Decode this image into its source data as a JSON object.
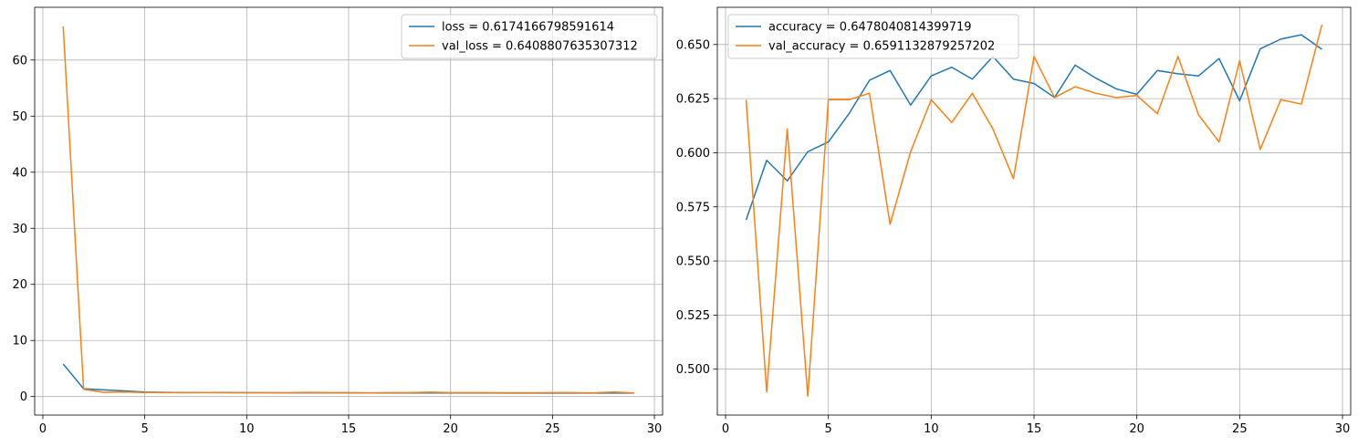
{
  "chart_data": [
    {
      "type": "line",
      "title": "",
      "xlabel": "",
      "ylabel": "",
      "xlim": [
        -0.4,
        30.4
      ],
      "ylim": [
        -3.3,
        69.4
      ],
      "xticks": [
        0,
        5,
        10,
        15,
        20,
        25,
        30
      ],
      "yticks": [
        0,
        10,
        20,
        30,
        40,
        50,
        60
      ],
      "grid": true,
      "legend_position": "top-right",
      "x": [
        1,
        2,
        3,
        4,
        5,
        6,
        7,
        8,
        9,
        10,
        11,
        12,
        13,
        14,
        15,
        16,
        17,
        18,
        19,
        20,
        21,
        22,
        23,
        24,
        25,
        26,
        27,
        28,
        29
      ],
      "series": [
        {
          "name": "loss = 0.6174166798591614",
          "color": "#1f77b4",
          "values": [
            5.8,
            1.4,
            1.2,
            1.0,
            0.8,
            0.75,
            0.7,
            0.7,
            0.7,
            0.68,
            0.68,
            0.67,
            0.66,
            0.66,
            0.66,
            0.65,
            0.65,
            0.65,
            0.64,
            0.64,
            0.64,
            0.64,
            0.63,
            0.63,
            0.63,
            0.63,
            0.63,
            0.62,
            0.62
          ]
        },
        {
          "name": "val_loss = 0.6408807635307312",
          "color": "#ff7f0e",
          "values": [
            66.0,
            1.3,
            0.75,
            0.8,
            0.72,
            0.7,
            0.7,
            0.72,
            0.7,
            0.7,
            0.68,
            0.68,
            0.75,
            0.7,
            0.7,
            0.66,
            0.7,
            0.7,
            0.78,
            0.7,
            0.7,
            0.7,
            0.68,
            0.68,
            0.7,
            0.7,
            0.66,
            0.8,
            0.64
          ]
        }
      ]
    },
    {
      "type": "line",
      "title": "",
      "xlabel": "",
      "ylabel": "",
      "xlim": [
        -0.4,
        30.4
      ],
      "ylim": [
        0.4788,
        0.6672
      ],
      "xticks": [
        0,
        5,
        10,
        15,
        20,
        25,
        30
      ],
      "yticks": [
        0.5,
        0.525,
        0.55,
        0.575,
        0.6,
        0.625,
        0.65
      ],
      "ytick_labels": [
        "0.500",
        "0.525",
        "0.550",
        "0.575",
        "0.600",
        "0.625",
        "0.650"
      ],
      "grid": true,
      "legend_position": "top-left",
      "x": [
        1,
        2,
        3,
        4,
        5,
        6,
        7,
        8,
        9,
        10,
        11,
        12,
        13,
        14,
        15,
        16,
        17,
        18,
        19,
        20,
        21,
        22,
        23,
        24,
        25,
        26,
        27,
        28,
        29
      ],
      "series": [
        {
          "name": "accuracy = 0.6478040814399719",
          "color": "#1f77b4",
          "values": [
            0.569,
            0.5965,
            0.587,
            0.6005,
            0.605,
            0.618,
            0.6335,
            0.638,
            0.622,
            0.6355,
            0.6395,
            0.634,
            0.6445,
            0.634,
            0.632,
            0.6255,
            0.6405,
            0.6345,
            0.6295,
            0.627,
            0.638,
            0.6365,
            0.6355,
            0.6435,
            0.624,
            0.648,
            0.6525,
            0.6545,
            0.6478
          ]
        },
        {
          "name": "val_accuracy = 0.6591132879257202",
          "color": "#ff7f0e",
          "values": [
            0.6245,
            0.4895,
            0.611,
            0.4875,
            0.6245,
            0.6245,
            0.6275,
            0.567,
            0.6005,
            0.6245,
            0.614,
            0.6275,
            0.611,
            0.588,
            0.6445,
            0.6255,
            0.6305,
            0.6275,
            0.6255,
            0.6265,
            0.618,
            0.6445,
            0.6175,
            0.605,
            0.6425,
            0.6015,
            0.6245,
            0.6225,
            0.6591
          ]
        }
      ]
    }
  ]
}
